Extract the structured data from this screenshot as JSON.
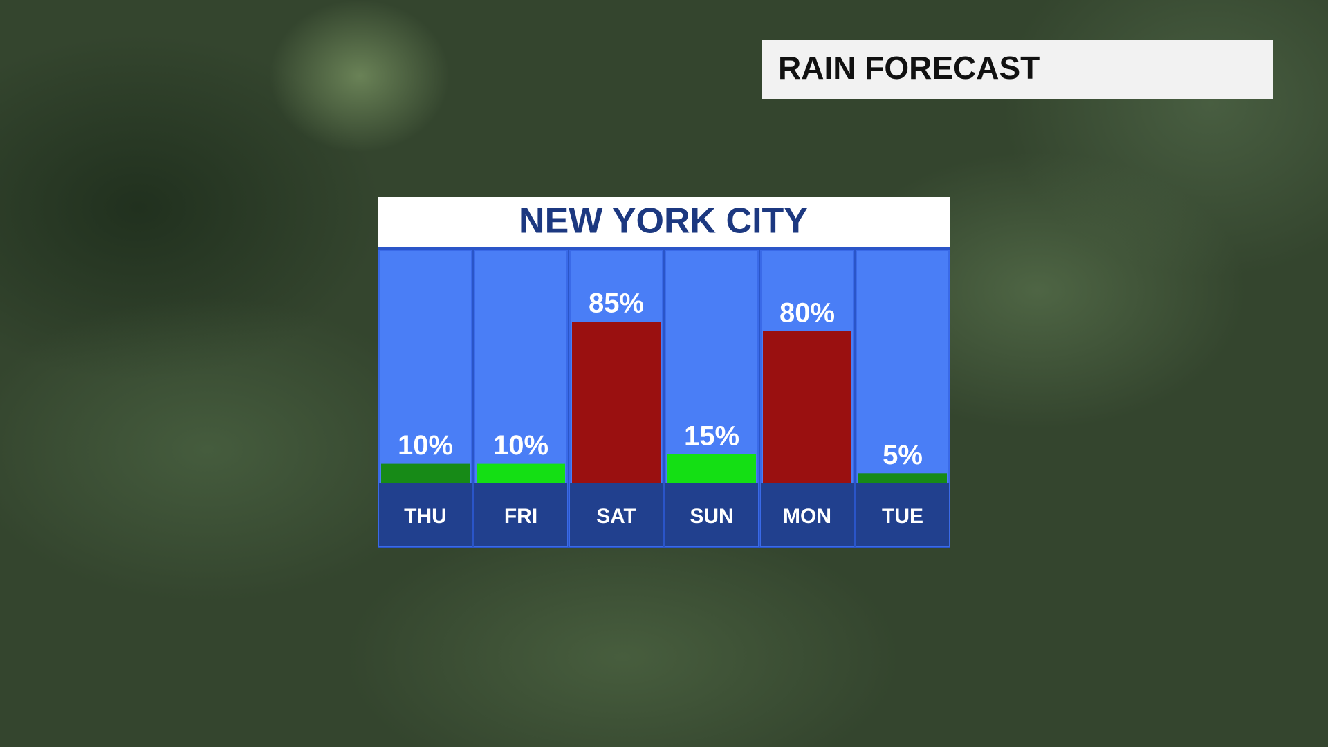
{
  "header": "RAIN FORECAST",
  "chart_data": {
    "type": "bar",
    "title": "NEW YORK CITY",
    "categories": [
      "THU",
      "FRI",
      "SAT",
      "SUN",
      "MON",
      "TUE"
    ],
    "values": [
      10,
      10,
      85,
      15,
      80,
      5
    ],
    "value_labels": [
      "10%",
      "10%",
      "85%",
      "15%",
      "80%",
      "5%"
    ],
    "colors": [
      "#178a17",
      "#14df14",
      "#9a1010",
      "#14df14",
      "#9a1010",
      "#178a17"
    ]
  }
}
